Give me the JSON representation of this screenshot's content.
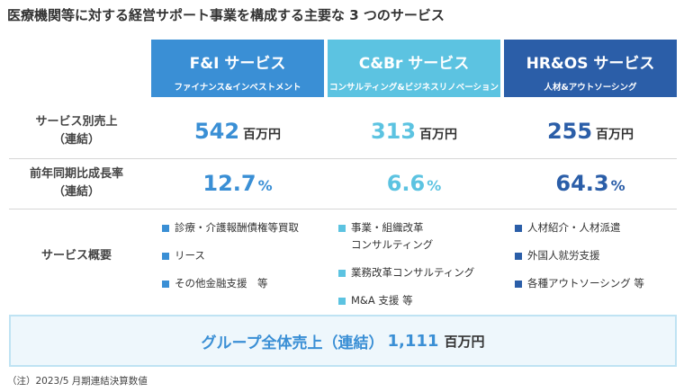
{
  "title": "医療機関等に対する経営サポート事業を構成する主要な 3 つのサービス",
  "columns": [
    {
      "name": "F&I サービス",
      "subtitle": "ファイナンス&インベストメント",
      "color": "#3a8fd5"
    },
    {
      "name": "C&Br サービス",
      "subtitle": "コンサルティング&ビジネスリノベーション",
      "color": "#5cc3e1"
    },
    {
      "name": "HR&OS サービス",
      "subtitle": "人材&アウトソーシング",
      "color": "#2b5ea8"
    }
  ],
  "rows": [
    {
      "label": [
        "サービス別売上",
        "（連結）"
      ],
      "cells": [
        {
          "number": "542",
          "unit": "百万円"
        },
        {
          "number": "313",
          "unit": "百万円"
        },
        {
          "number": "255",
          "unit": "百万円"
        }
      ]
    },
    {
      "label": [
        "前年同期比成長率",
        "（連結）"
      ],
      "cells": [
        {
          "number": "12.7",
          "unit": "%"
        },
        {
          "number": "6.6",
          "unit": "%"
        },
        {
          "number": "64.3",
          "unit": "%"
        }
      ]
    }
  ],
  "overview": {
    "label": "サービス概要",
    "items": [
      [
        [
          "診療・介護報酬債権等買取"
        ],
        [
          "リース"
        ],
        [
          "その他金融支援　等"
        ]
      ],
      [
        [
          "事業・組織改革",
          "コンサルティング"
        ],
        [
          "業務改革コンサルティング"
        ],
        [
          "M&A 支援 等"
        ]
      ],
      [
        [
          "人材紹介・人材派遣"
        ],
        [
          "外国人就労支援"
        ],
        [
          "各種アウトソーシング 等"
        ]
      ]
    ]
  },
  "total": {
    "label": "グループ全体売上（連結）",
    "number": "1,111",
    "unit": "百万円"
  },
  "note": "（注）2023/5 月期連結決算数値"
}
